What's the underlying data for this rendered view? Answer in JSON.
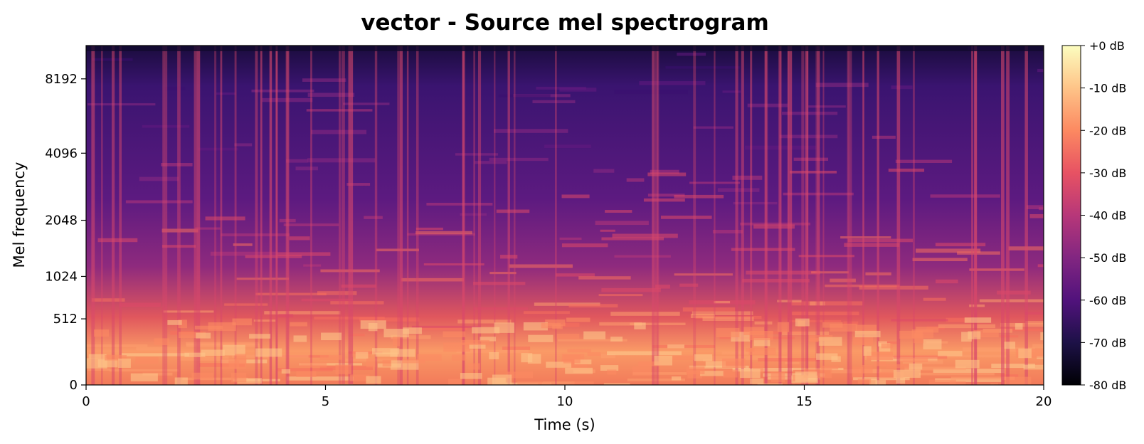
{
  "chart_data": {
    "type": "heatmap",
    "title": "vector - Source mel spectrogram",
    "xlabel": "Time (s)",
    "ylabel": "Mel frequency",
    "x_range": [
      0,
      20
    ],
    "x_ticks": [
      0,
      5,
      10,
      15,
      20
    ],
    "y_scale": "mel",
    "y_ticks": [
      "0",
      "512",
      "1024",
      "2048",
      "4096",
      "8192"
    ],
    "colormap": "magma",
    "colorbar": {
      "range_db": [
        -80,
        0
      ],
      "ticks": [
        "+0 dB",
        "-10 dB",
        "-20 dB",
        "-30 dB",
        "-40 dB",
        "-50 dB",
        "-60 dB",
        "-70 dB",
        "-80 dB"
      ]
    },
    "grid": false
  }
}
